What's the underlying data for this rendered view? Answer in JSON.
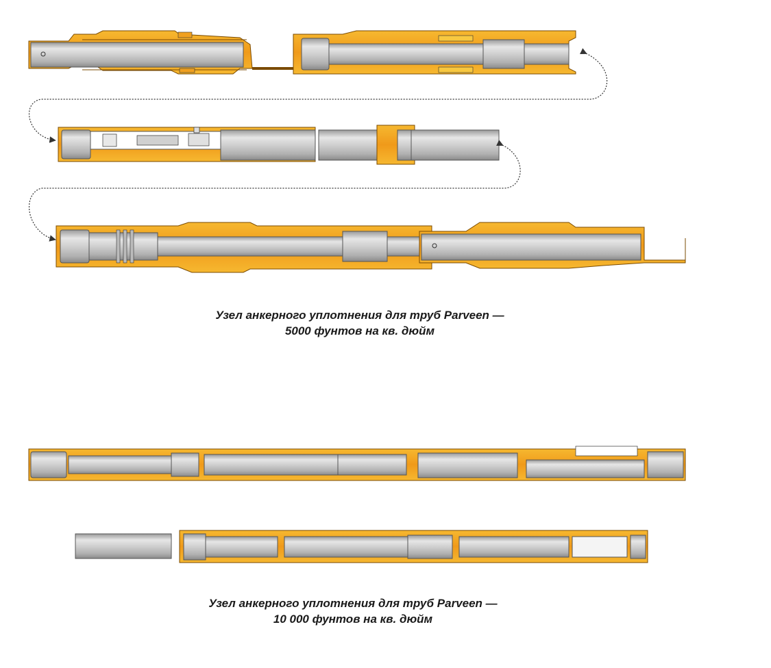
{
  "captions": {
    "psi_5000": {
      "line1": "Узел анкерного уплотнения для труб Parveen —",
      "line2": "5000 фунтов на кв. дюйм"
    },
    "psi_10000": {
      "line1": "Узел анкерного уплотнения для труб Parveen —",
      "line2": "10 000 фунтов на кв. дюйм"
    }
  },
  "colors": {
    "orange": "#f0a020",
    "orange_dark": "#e07e10",
    "yellow": "#f8c840",
    "pipe_gray": "#c8c8c8",
    "pipe_light": "#e8e8e8",
    "outline": "#404040"
  }
}
